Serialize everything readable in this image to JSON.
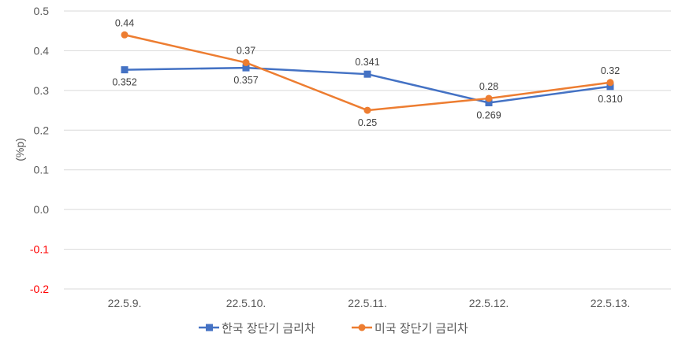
{
  "chart_data": {
    "type": "line",
    "title": "",
    "xlabel": "",
    "ylabel": "(%p)",
    "categories": [
      "22.5.9.",
      "22.5.10.",
      "22.5.11.",
      "22.5.12.",
      "22.5.13."
    ],
    "ylim": [
      -0.2,
      0.5
    ],
    "yticks": [
      0.5,
      0.4,
      0.3,
      0.2,
      0.1,
      0.0,
      -0.1,
      -0.2
    ],
    "ytick_labels": [
      "0.5",
      "0.4",
      "0.3",
      "0.2",
      "0.1",
      "0.0",
      "-0.1",
      "-0.2"
    ],
    "negative_tick_color": "#ff0000",
    "grid": true,
    "legend_position": "bottom",
    "series": [
      {
        "name": "한국 장단기 금리차",
        "values": [
          0.352,
          0.357,
          0.341,
          0.269,
          0.31
        ],
        "labels": [
          "0.352",
          "0.357",
          "0.341",
          "0.269",
          "0.310"
        ],
        "label_positions": [
          "below",
          "below",
          "above",
          "below",
          "below"
        ],
        "color": "#4472c4",
        "marker": "square"
      },
      {
        "name": "미국 장단기 금리차",
        "values": [
          0.44,
          0.37,
          0.25,
          0.28,
          0.32
        ],
        "labels": [
          "0.44",
          "0.37",
          "0.25",
          "0.28",
          "0.32"
        ],
        "label_positions": [
          "above",
          "above",
          "below",
          "above",
          "above"
        ],
        "color": "#ed7d31",
        "marker": "circle"
      }
    ]
  }
}
